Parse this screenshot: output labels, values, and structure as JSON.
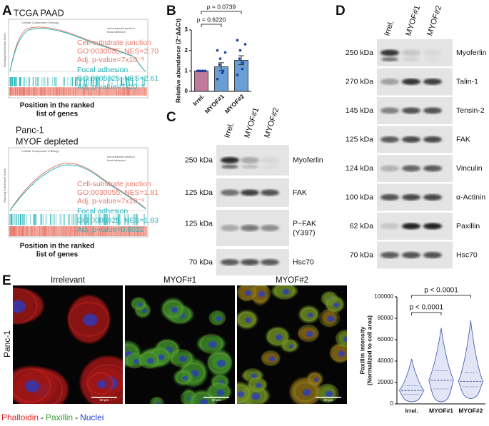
{
  "panels": {
    "a": {
      "label": "A",
      "plots": [
        {
          "title": "TCGA PAAD",
          "plot_title": "Cellular Component Ontology",
          "legend": [
            "cell-substrate junction",
            "focal adhesion"
          ],
          "ylabel": "Running Enrichment Score",
          "annotations": [
            "Cell-substrate junction",
            "GO:0030055, NES=2.70",
            "Adj. p-value=7x10⁻⁹",
            "Focal adhesion",
            "GO:0005925, NES=2.61",
            "Adj. p-value=7x10⁻⁹"
          ],
          "xlabel_lines": [
            "Position in the ranked",
            "list of genes"
          ]
        },
        {
          "title_lines": [
            "Panc-1",
            "MYOF depleted"
          ],
          "plot_title": "Cellular Component Ontology",
          "legend": [
            "cell-substrate junction",
            "focal adhesion"
          ],
          "ylabel": "Running Enrichment Score",
          "annotations": [
            "Cell-substrate junction",
            "GO:0030055, NES=1.81",
            "Adj. p-value=7x10⁻⁹",
            "Focal adhesion",
            "GO:0005925, NES=1.83",
            "Adj. p-value=0.0022"
          ],
          "xlabel_lines": [
            "Position in the ranked",
            "list of genes"
          ]
        }
      ]
    },
    "b": {
      "label": "B"
    },
    "c": {
      "label": "C",
      "lanes": [
        "Irrel.",
        "MYOF#1",
        "MYOF#2"
      ],
      "rows": [
        {
          "size": "250 kDa",
          "protein": "Myoferlin"
        },
        {
          "size": "125 kDa",
          "protein": "FAK"
        },
        {
          "size": "125 kDa",
          "protein": "P~FAK",
          "protein_line2": "(Y397)"
        },
        {
          "size": "70 kDa",
          "protein": "Hsc70"
        }
      ]
    },
    "d": {
      "label": "D",
      "lanes": [
        "Irrel.",
        "MYOF#1",
        "MYOF#2"
      ],
      "rows": [
        {
          "size": "250 kDa",
          "protein": "Myoferlin"
        },
        {
          "size": "270 kDa",
          "protein": "Talin-1"
        },
        {
          "size": "145 kDa",
          "protein": "Tensin-2"
        },
        {
          "size": "125 kDa",
          "protein": "FAK"
        },
        {
          "size": "124 kDa",
          "protein": "Vinculin"
        },
        {
          "size": "100 kDa",
          "protein": "α-Actinin"
        },
        {
          "size": "62 kDa",
          "protein": "Paxillin"
        },
        {
          "size": "70 kDa",
          "protein": "Hsc70"
        }
      ]
    },
    "e": {
      "label": "E",
      "row_label": "Panc-1",
      "images": [
        "Irrelevant",
        "MYOF#1",
        "MYOF#2"
      ],
      "scale_bar": "50 µm",
      "stains": [
        "Phalloidin",
        "Paxillin",
        "Nuclei"
      ],
      "separators": [
        "-",
        "-"
      ]
    }
  },
  "chart_data": [
    {
      "type": "bar",
      "ylabel": "Relative abundance (2⁻ΔΔCt)",
      "categories": [
        "Irrel.",
        "MYOF#1",
        "MYOF#2"
      ],
      "values": [
        1.0,
        1.2,
        1.52
      ],
      "errors": [
        0,
        0.2,
        0.22
      ],
      "points": [
        [
          1,
          1,
          1,
          1,
          1,
          1
        ],
        [
          0.6,
          0.9,
          1.0,
          1.3,
          1.6,
          1.9,
          2.0
        ],
        [
          0.8,
          1.1,
          1.4,
          1.6,
          2.0,
          2.3,
          2.5
        ]
      ],
      "colors": [
        "#c27a9c",
        "#6a9fd6",
        "#6a9fd6"
      ],
      "point_color": "#1f3f9f",
      "ylim": [
        0,
        3
      ],
      "yticks": [
        0,
        1,
        2,
        3
      ],
      "comparisons": [
        {
          "pair": [
            0,
            1
          ],
          "label": "p = 0.6220"
        },
        {
          "pair": [
            0,
            2
          ],
          "label": "p = 0.0739"
        }
      ]
    },
    {
      "type": "violin",
      "ylabel_lines": [
        "Paxillin intensity",
        "(Normalized to cell area)"
      ],
      "categories": [
        "Irrel.",
        "MYOF#1",
        "MYOF#2"
      ],
      "min": [
        2000,
        2000,
        5000
      ],
      "q1": [
        9000,
        14000,
        16000
      ],
      "median": [
        12500,
        22000,
        21000
      ],
      "q3": [
        17000,
        31000,
        29000
      ],
      "max": [
        42000,
        71000,
        78000
      ],
      "color": "#4a5fb0",
      "fill": "#cdd3f0",
      "ylim": [
        0,
        100000
      ],
      "yticks": [
        0,
        20000,
        40000,
        60000,
        80000,
        100000
      ],
      "comparisons": [
        {
          "pair": [
            0,
            1
          ],
          "label": "p < 0.0001"
        },
        {
          "pair": [
            0,
            2
          ],
          "label": "p < 0.0001"
        }
      ]
    }
  ]
}
